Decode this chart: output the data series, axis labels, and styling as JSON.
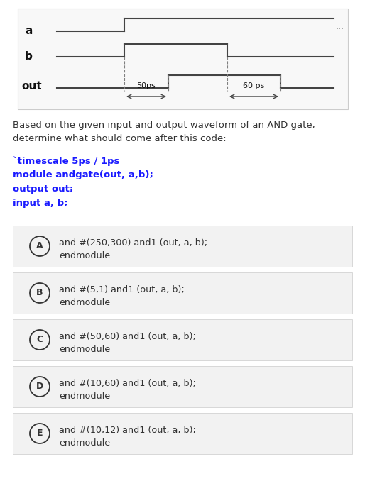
{
  "title_text1": "Based on the given input and output waveform of an AND gate,",
  "title_text2": "determine what should come after this code:",
  "code_lines": [
    "`timescale 5ps / 1ps",
    "module andgate(out, a,b);",
    "output out;",
    "input a, b;"
  ],
  "options": [
    {
      "label": "A",
      "line1": "and #(250,300) and1 (out, a, b);",
      "line2": "endmodule"
    },
    {
      "label": "B",
      "line1": "and #(5,1) and1 (out, a, b);",
      "line2": "endmodule"
    },
    {
      "label": "C",
      "line1": "and #(50,60) and1 (out, a, b);",
      "line2": "endmodule"
    },
    {
      "label": "D",
      "line1": "and #(10,60) and1 (out, a, b);",
      "line2": "endmodule"
    },
    {
      "label": "E",
      "line1": "and #(10,12) and1 (out, a, b);",
      "line2": "endmodule"
    }
  ],
  "bg_color": "#ffffff",
  "option_bg": "#f2f2f2",
  "option_border": "#d8d8d8",
  "code_color": "#1a1aff",
  "text_color": "#333333",
  "waveform_color": "#444444",
  "dots_color": "#777777",
  "label_color": "#111111",
  "waveform_bg": "#f8f8f8",
  "waveform_border": "#cccccc",
  "annotation_50ps": "50ps",
  "annotation_60ps": "60 ps"
}
